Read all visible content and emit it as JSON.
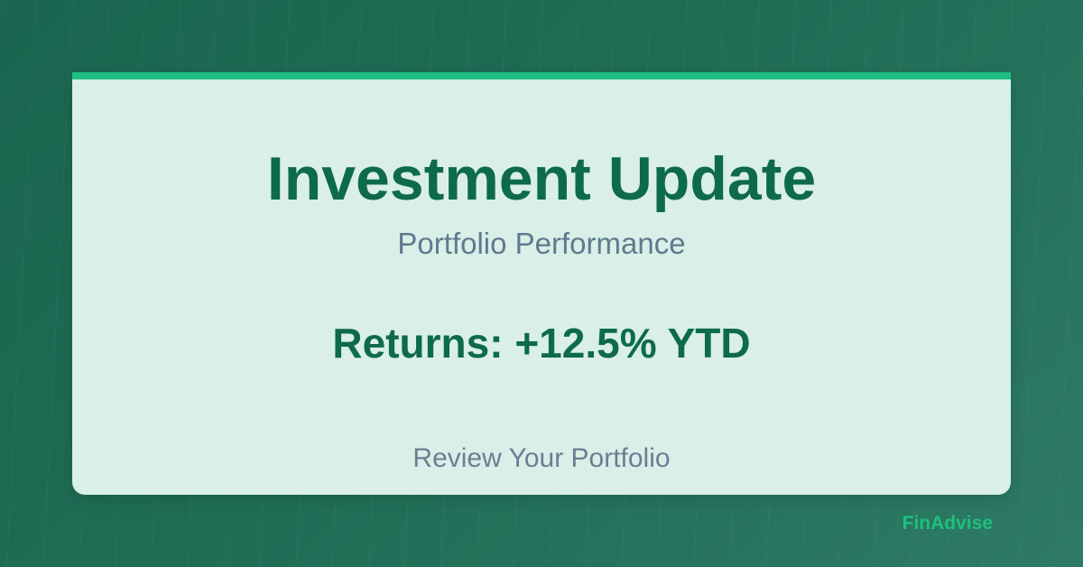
{
  "card": {
    "title": "Investment Update",
    "subtitle": "Portfolio Performance",
    "returns": "Returns: +12.5% YTD",
    "cta": "Review Your Portfolio"
  },
  "brand": {
    "name": "FinAdvise"
  },
  "colors": {
    "background": "#1f6d55",
    "card": "#d9efe7",
    "accent": "#1dbf84",
    "title": "#0e6a4c",
    "muted": "#5e7b8e",
    "brand": "#1ec07e"
  }
}
